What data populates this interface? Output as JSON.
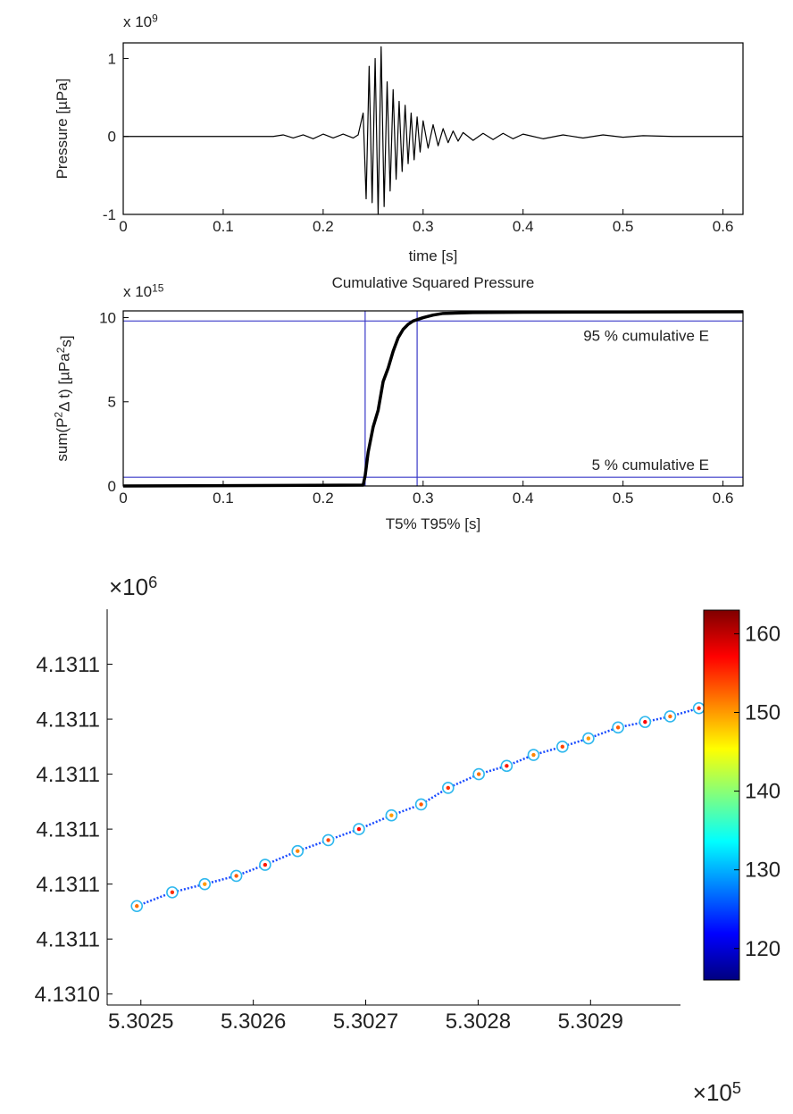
{
  "chart_data": [
    {
      "type": "line",
      "multiplier": [
        "x 10",
        "9"
      ],
      "xlabel": "time [s]",
      "ylabel": "Pressure [µPa]",
      "color": "#000000",
      "x": [
        0,
        0.15,
        0.16,
        0.17,
        0.18,
        0.19,
        0.2,
        0.21,
        0.22,
        0.23,
        0.235,
        0.24,
        0.243,
        0.246,
        0.249,
        0.252,
        0.255,
        0.258,
        0.261,
        0.264,
        0.267,
        0.27,
        0.273,
        0.276,
        0.279,
        0.282,
        0.285,
        0.288,
        0.291,
        0.294,
        0.297,
        0.3,
        0.305,
        0.31,
        0.315,
        0.32,
        0.325,
        0.33,
        0.335,
        0.34,
        0.35,
        0.36,
        0.37,
        0.38,
        0.39,
        0.4,
        0.42,
        0.44,
        0.46,
        0.48,
        0.5,
        0.52,
        0.55,
        0.6,
        0.62
      ],
      "values": [
        0,
        0,
        0.02,
        -0.02,
        0.02,
        -0.03,
        0.03,
        -0.02,
        0.03,
        -0.02,
        0.02,
        0.3,
        -0.8,
        0.9,
        -0.85,
        1.0,
        -1.0,
        1.15,
        -0.9,
        0.7,
        -0.7,
        0.6,
        -0.55,
        0.45,
        -0.45,
        0.4,
        -0.35,
        0.3,
        -0.3,
        0.25,
        -0.2,
        0.2,
        -0.15,
        0.15,
        -0.12,
        0.1,
        -0.08,
        0.07,
        -0.06,
        0.05,
        -0.05,
        0.04,
        -0.04,
        0.04,
        -0.03,
        0.03,
        -0.03,
        0.02,
        -0.02,
        0.02,
        -0.01,
        0.01,
        0,
        0,
        0
      ],
      "xlim": [
        0,
        0.62
      ],
      "xticks": [
        0,
        0.1,
        0.2,
        0.3,
        0.4,
        0.5,
        0.6
      ],
      "ylim": [
        -1,
        1.2
      ],
      "yticks": [
        -1,
        0,
        1
      ]
    },
    {
      "type": "line",
      "title": "Cumulative Squared Pressure",
      "multiplier": [
        "x 10",
        "15"
      ],
      "xlabel": "T5% T95% [s]",
      "ylabel": [
        "sum(P",
        "2",
        "Δ t) [µPa",
        "2",
        "s]"
      ],
      "color": "#000000",
      "x": [
        0,
        0.24,
        0.242,
        0.245,
        0.25,
        0.255,
        0.26,
        0.265,
        0.27,
        0.275,
        0.28,
        0.285,
        0.29,
        0.3,
        0.31,
        0.32,
        0.35,
        0.4,
        0.62
      ],
      "values": [
        0,
        0.05,
        0.6,
        2.0,
        3.5,
        4.5,
        6.2,
        7.0,
        8.0,
        8.8,
        9.3,
        9.6,
        9.8,
        10.0,
        10.15,
        10.25,
        10.3,
        10.32,
        10.35
      ],
      "ref_color": "#3a3ac8",
      "hlines": [
        {
          "value": 9.8,
          "label": "95 % cumulative E"
        },
        {
          "value": 0.52,
          "label": "5 % cumulative E"
        }
      ],
      "vlines": [
        0.242,
        0.294
      ],
      "xlim": [
        0,
        0.62
      ],
      "xticks": [
        0,
        0.1,
        0.2,
        0.3,
        0.4,
        0.5,
        0.6
      ],
      "ylim": [
        0,
        10.4
      ],
      "yticks": [
        0,
        5,
        10
      ]
    },
    {
      "type": "scatter",
      "x_multiplier": [
        "×10",
        "5"
      ],
      "y_multiplier": [
        "×10",
        "6"
      ],
      "line_color": "#1a4cff",
      "marker_edge_color": "#2fb8ee",
      "x": [
        5.3024964,
        5.3025279,
        5.3025568,
        5.3025849,
        5.3026105,
        5.3026394,
        5.3026667,
        5.302694,
        5.3027229,
        5.3027493,
        5.3027733,
        5.3028006,
        5.3028254,
        5.3028493,
        5.302875,
        5.3028981,
        5.3029245,
        5.3029485,
        5.3029708,
        5.3029964
      ],
      "y": [
        4.1310522,
        4.1310527,
        4.131053,
        4.1310533,
        4.1310537,
        4.1310542,
        4.1310546,
        4.131055,
        4.1310555,
        4.1310559,
        4.1310565,
        4.131057,
        4.1310573,
        4.1310577,
        4.131058,
        4.1310583,
        4.1310587,
        4.1310589,
        4.1310591,
        4.1310594
      ],
      "c": [
        152,
        155,
        150,
        153,
        156,
        151,
        154,
        157,
        150,
        153,
        155,
        152,
        156,
        151,
        154,
        150,
        153,
        157,
        152,
        155
      ],
      "clim": [
        116,
        163
      ],
      "cticks": [
        120,
        130,
        140,
        150,
        160
      ],
      "xlim": [
        5.30247,
        5.30298
      ],
      "xticks": [
        5.3025,
        5.3026,
        5.3027,
        5.3028,
        5.3029
      ],
      "ylim": [
        4.1310486,
        4.131063
      ],
      "yticks": [
        {
          "value": 4.131049,
          "label": "4.1310"
        },
        {
          "value": 4.131051,
          "label": "4.1311"
        },
        {
          "value": 4.131053,
          "label": "4.1311"
        },
        {
          "value": 4.131055,
          "label": "4.1311"
        },
        {
          "value": 4.131057,
          "label": "4.1311"
        },
        {
          "value": 4.131059,
          "label": "4.1311"
        },
        {
          "value": 4.131061,
          "label": "4.1311"
        }
      ]
    }
  ]
}
